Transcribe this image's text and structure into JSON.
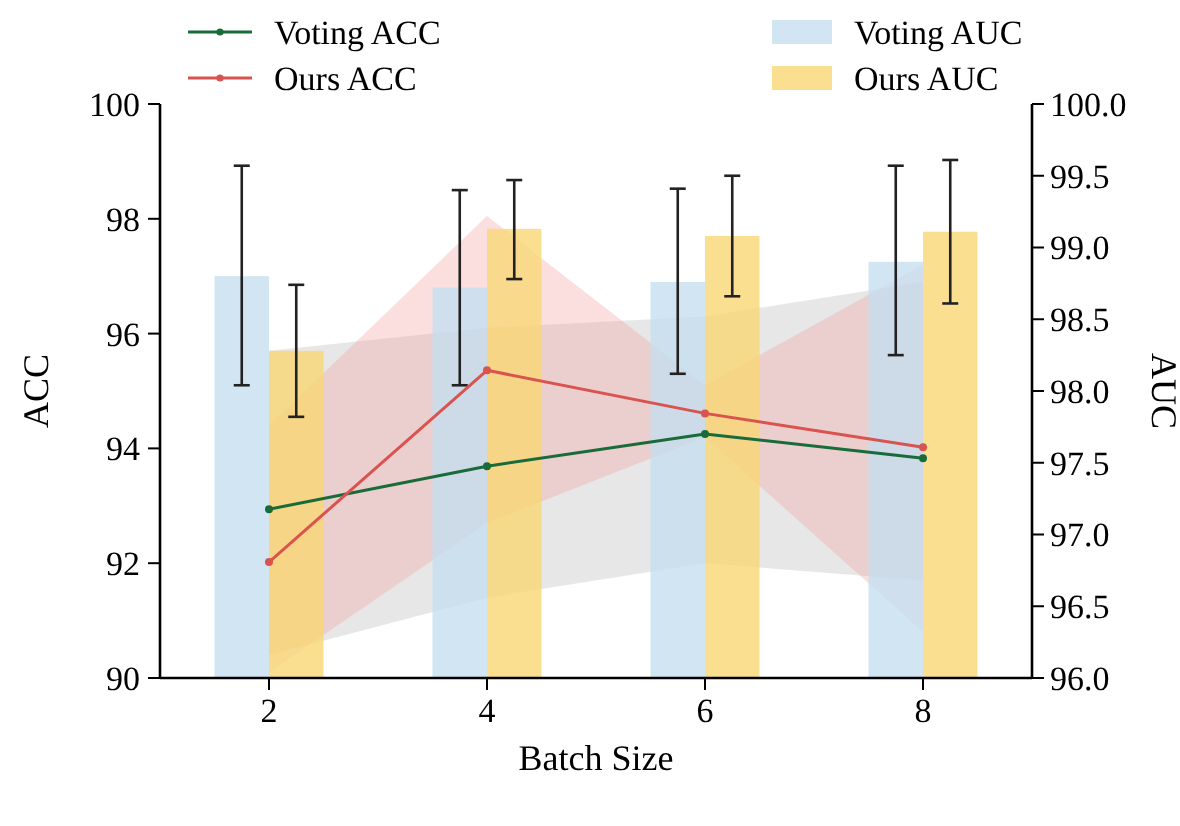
{
  "chart_data": {
    "type": "bar",
    "xlabel": "Batch Size",
    "ylabel": "ACC",
    "y2label": "AUC",
    "categories": [
      "2",
      "4",
      "6",
      "8"
    ],
    "ylim": [
      90,
      100
    ],
    "yticks": [
      90,
      92,
      94,
      96,
      98,
      100
    ],
    "y2lim": [
      96,
      100
    ],
    "y2ticks": [
      {
        "value": 96,
        "label": "96.0"
      },
      {
        "value": 96.5,
        "label": "96.5"
      },
      {
        "value": 97,
        "label": "97.0"
      },
      {
        "value": 97.5,
        "label": "97.5"
      },
      {
        "value": 98,
        "label": "98.0"
      },
      {
        "value": 98.5,
        "label": "98.5"
      },
      {
        "value": 99,
        "label": "99.0"
      },
      {
        "value": 99.5,
        "label": "99.5"
      },
      {
        "value": 100,
        "label": "100.0"
      }
    ],
    "legend": "top",
    "marker": "circle",
    "line_style": "solid",
    "grid": false,
    "series": [
      {
        "name": "Voting ACC",
        "type": "line",
        "color": "#1a6b3a",
        "values": [
          92.94,
          93.69,
          94.25,
          93.83
        ],
        "lower": [
          90.4,
          91.4,
          92.0,
          91.7
        ],
        "upper": [
          95.7,
          96.1,
          96.3,
          96.9
        ]
      },
      {
        "name": "Ours ACC",
        "type": "line",
        "color": "#d9534f",
        "values": [
          92.02,
          95.36,
          94.61,
          94.02
        ],
        "lower": [
          90.1,
          92.7,
          94.2,
          90.8
        ],
        "upper": [
          94.4,
          98.05,
          95.1,
          97.2
        ]
      },
      {
        "name": "Voting AUC",
        "axis": "y2",
        "color": "#c6dff0",
        "values": [
          98.8,
          98.72,
          98.76,
          98.9
        ],
        "errors": [
          [
            98.04,
            99.57
          ],
          [
            98.04,
            99.4
          ],
          [
            98.12,
            99.41
          ],
          [
            98.25,
            99.57
          ]
        ]
      },
      {
        "name": "Ours AUC",
        "axis": "y2",
        "color": "#f9d776",
        "values": [
          98.28,
          99.13,
          99.08,
          99.11
        ],
        "errors": [
          [
            97.82,
            98.74
          ],
          [
            98.78,
            99.47
          ],
          [
            98.66,
            99.5
          ],
          [
            98.61,
            99.61
          ]
        ]
      }
    ]
  }
}
